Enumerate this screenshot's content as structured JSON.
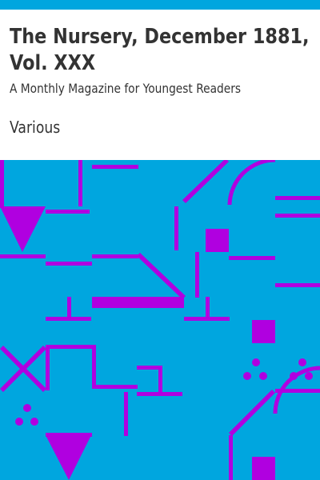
{
  "book": {
    "title": "The Nursery, December 1881, Vol. XXX",
    "subtitle": "A Monthly Magazine for Youngest Readers",
    "author": "Various"
  },
  "colors": {
    "top_bar": "#00a6df",
    "pattern_background": "#00a6df",
    "pattern_shapes": "#b000e0",
    "text": "#333333"
  }
}
